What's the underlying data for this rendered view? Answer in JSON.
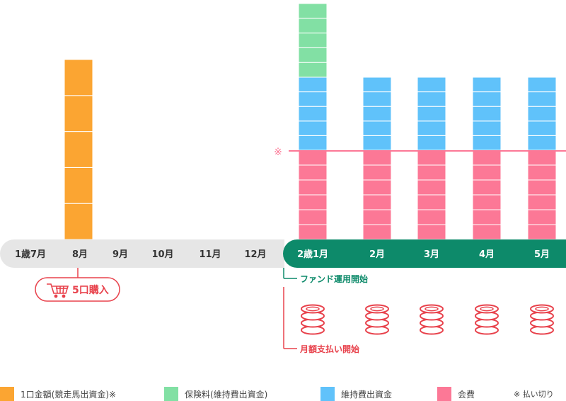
{
  "colors": {
    "orange": "#fba532",
    "green": "#82e0a4",
    "blue": "#60c2fa",
    "pink": "#fc7896",
    "teal": "#0d8a6a",
    "grey_band": "#e6e6e6",
    "red": "#e8424c",
    "dark_text": "#333333"
  },
  "timeline": {
    "pre_months": [
      "1歳7月",
      "8月",
      "9月",
      "10月",
      "11月",
      "12月"
    ],
    "post_months": [
      "2歳1月",
      "2月",
      "3月",
      "4月",
      "5月"
    ]
  },
  "columns": [
    {
      "month": "8月",
      "stack": [
        {
          "type": "orange",
          "units": 5
        }
      ]
    },
    {
      "month": "2歳1月",
      "stack": [
        {
          "type": "pink",
          "units": 6
        },
        {
          "type": "blue",
          "units": 5
        },
        {
          "type": "green",
          "units": 5
        }
      ]
    },
    {
      "month": "2月",
      "stack": [
        {
          "type": "pink",
          "units": 6
        },
        {
          "type": "blue",
          "units": 5
        }
      ]
    },
    {
      "month": "3月",
      "stack": [
        {
          "type": "pink",
          "units": 6
        },
        {
          "type": "blue",
          "units": 5
        }
      ]
    },
    {
      "month": "4月",
      "stack": [
        {
          "type": "pink",
          "units": 6
        },
        {
          "type": "blue",
          "units": 5
        }
      ]
    },
    {
      "month": "5月",
      "stack": [
        {
          "type": "pink",
          "units": 6
        },
        {
          "type": "blue",
          "units": 5
        }
      ]
    }
  ],
  "annotations": {
    "purchase": "5口購入",
    "fund_start": "ファンド運用開始",
    "payment_start": "月額支払い開始",
    "note_mark": "※"
  },
  "coin_months": [
    "2歳1月",
    "2月",
    "3月",
    "4月",
    "5月"
  ],
  "legend": [
    {
      "label": "1口金額(競走馬出資金)※",
      "color": "#fba532"
    },
    {
      "label": "保険料(維持費出資金)",
      "color": "#82e0a4"
    },
    {
      "label": "維持費出資金",
      "color": "#60c2fa"
    },
    {
      "label": "会費",
      "color": "#fc7896"
    }
  ],
  "legend_note": "※ 払い切り"
}
